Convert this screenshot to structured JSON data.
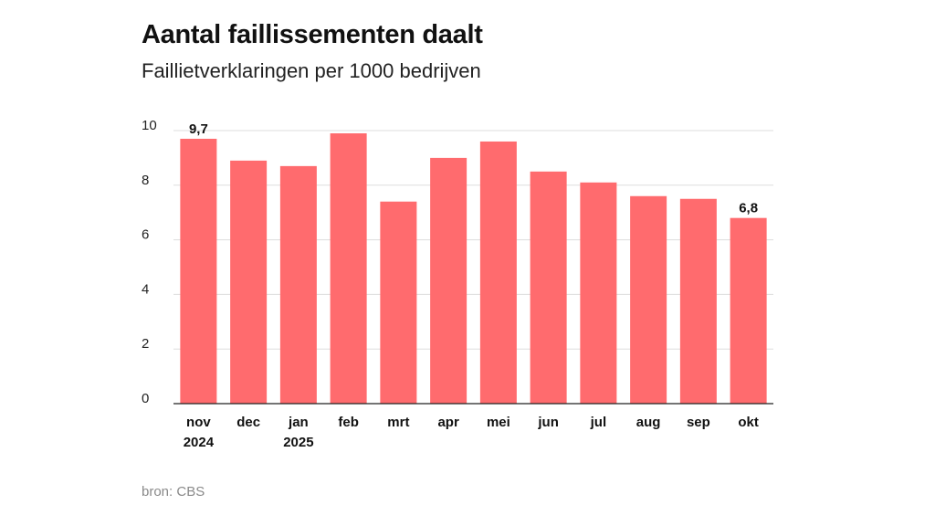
{
  "chart_data": {
    "type": "bar",
    "title": "Aantal faillissementen daalt",
    "subtitle": "Faillietverklaringen per 1000 bedrijven",
    "categories": [
      [
        "nov",
        "2024"
      ],
      [
        "dec"
      ],
      [
        "jan",
        "2025"
      ],
      [
        "feb"
      ],
      [
        "mrt"
      ],
      [
        "apr"
      ],
      [
        "mei"
      ],
      [
        "jun"
      ],
      [
        "jul"
      ],
      [
        "aug"
      ],
      [
        "sep"
      ],
      [
        "okt"
      ]
    ],
    "values": [
      9.7,
      8.9,
      8.7,
      9.9,
      7.4,
      9.0,
      9.6,
      8.5,
      8.1,
      7.6,
      7.5,
      6.8
    ],
    "data_labels": {
      "0": "9,7",
      "11": "6,8"
    },
    "yticks": [
      "0",
      "2",
      "4",
      "6",
      "8",
      "10"
    ],
    "ylim": [
      0,
      10
    ],
    "grid": true,
    "bar_color": "#ff6b6e",
    "source": "bron: CBS"
  }
}
